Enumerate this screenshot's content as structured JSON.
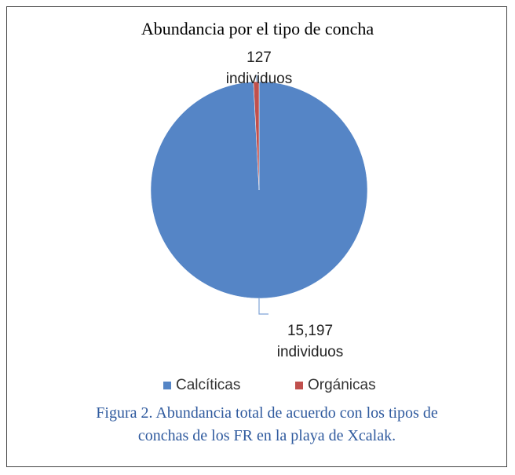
{
  "chart_data": {
    "type": "pie",
    "title": "Abundancia por el tipo de concha",
    "categories": [
      "Calcíticas",
      "Orgánicas"
    ],
    "values": [
      15197,
      127
    ],
    "value_labels": [
      "15,197 individuos",
      "127 individuos"
    ],
    "colors": [
      "#5585c6",
      "#c0504d"
    ],
    "legend": "bottom"
  },
  "caption": "Figura 2. Abundancia total de acuerdo con los tipos de conchas de los FR en la playa de Xcalak."
}
